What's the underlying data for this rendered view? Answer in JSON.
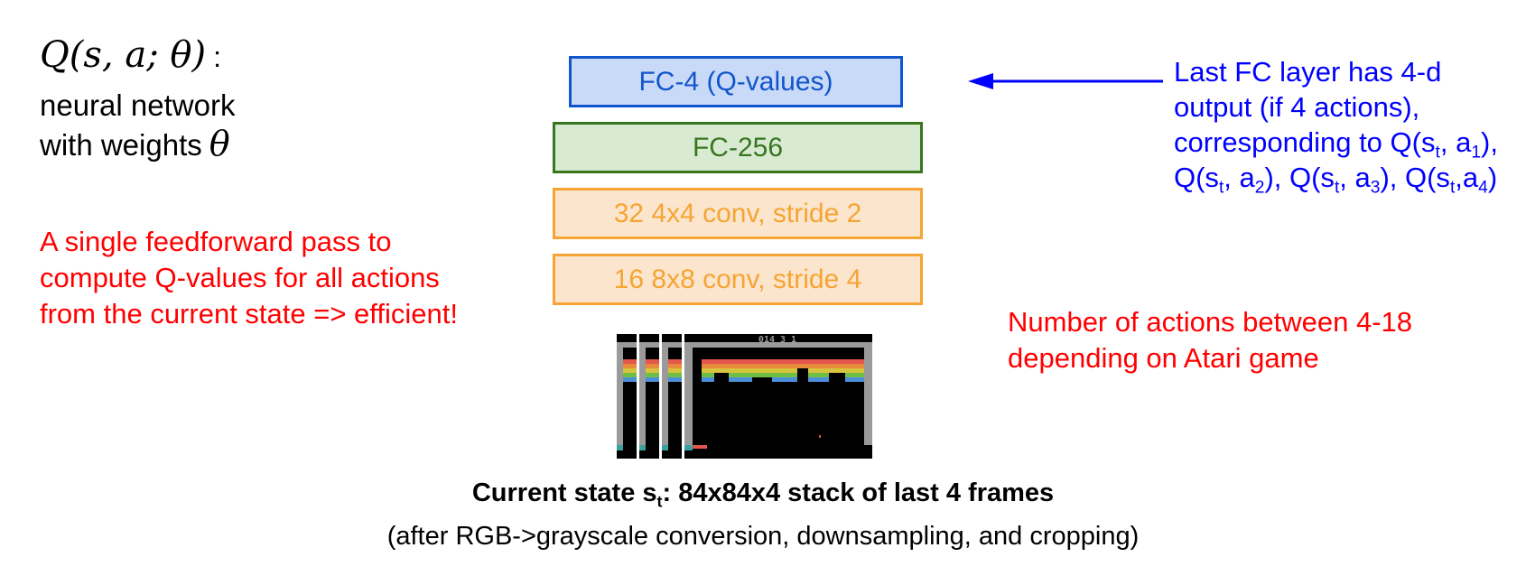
{
  "q_function": {
    "formula_open": "Q(",
    "formula_args": "s, a; θ",
    "formula_close": ")",
    "colon": ":"
  },
  "description": {
    "line1": "neural network",
    "line2": "with weights",
    "theta": "θ"
  },
  "left_note": {
    "text": "A single feedforward pass to compute Q-values for all actions from the current state => efficient!",
    "color": "#ff0000"
  },
  "layers": [
    {
      "label": "FC-4 (Q-values)",
      "fill": "#c9daf8",
      "border": "#1155cc",
      "text_color": "#1155cc"
    },
    {
      "label": "FC-256",
      "fill": "#d9ead3",
      "border": "#38761d",
      "text_color": "#38761d"
    },
    {
      "label": "32 4x4 conv, stride 2",
      "fill": "#fce5cd",
      "border": "#f6a433",
      "text_color": "#f6a433"
    },
    {
      "label": "16 8x8 conv, stride 4",
      "fill": "#fce5cd",
      "border": "#f6a433",
      "text_color": "#f6a433"
    }
  ],
  "frames": {
    "score_text": "014 3 1",
    "rainbow_colors": [
      "#e4574c",
      "#e88a3c",
      "#d7c33c",
      "#6fbe45",
      "#4a8fd8"
    ]
  },
  "right_note": {
    "line1": "Last FC layer has 4-d output (if 4 actions), corresponding to Q(s",
    "sub_t1": "t",
    "line1_end": ",",
    "a": "a",
    "sub_1": "1",
    "part2": "), Q(s",
    "sub_t2": "t",
    "part3": ", a",
    "sub_2": "2",
    "part4": "), Q(s",
    "sub_t3": "t",
    "part5": ", a",
    "sub_3": "3",
    "part6": "),",
    "part7": "Q(s",
    "sub_t4": "t",
    "part8": ",a",
    "sub_4": "4",
    "part9": ")",
    "color": "#0000ff"
  },
  "actions_note": {
    "text": "Number of actions between 4-18 depending on Atari game",
    "color": "#ff0000"
  },
  "caption": {
    "bold_prefix": "Current state s",
    "bold_sub": "t",
    "bold_suffix": ": 84x84x4 stack of last 4 frames",
    "subtitle": "(after RGB->grayscale conversion, downsampling, and cropping)"
  }
}
